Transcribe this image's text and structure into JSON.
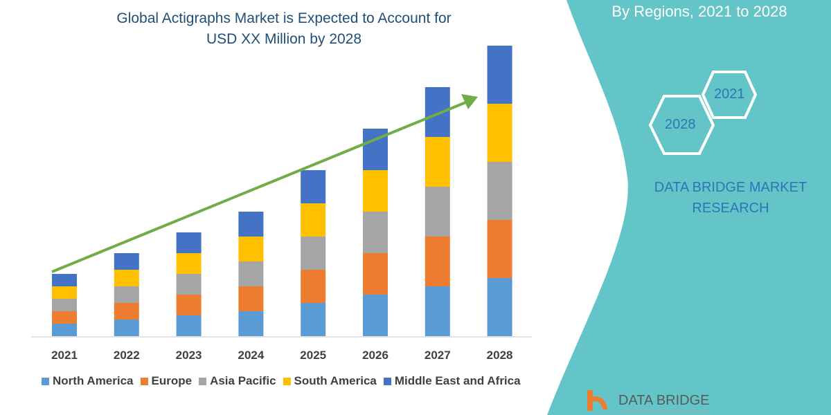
{
  "title": "Global Actigraphs Market is Expected to Account for USD XX Million by 2028",
  "title_lines": [
    "Global Actigraphs Market is Expected to Account for",
    "USD XX Million by 2028"
  ],
  "side_panel": {
    "subtitle": "By Regions,  2021 to 2028",
    "hex_labels": [
      "2021",
      "2028"
    ],
    "brand": [
      "DATA BRIDGE MARKET",
      "RESEARCH"
    ],
    "logo_text": "DATA BRIDGE",
    "panel_color": "#63c5c8"
  },
  "chart_data": {
    "type": "bar",
    "stacked": true,
    "title": "Global Actigraphs Market is Expected to Account for USD XX Million by 2028",
    "categories": [
      "2021",
      "2022",
      "2023",
      "2024",
      "2025",
      "2026",
      "2027",
      "2028"
    ],
    "series": [
      {
        "name": "North America",
        "color": "#5b9bd5",
        "values": [
          15,
          20,
          25,
          30,
          40,
          50,
          60,
          70
        ]
      },
      {
        "name": "Europe",
        "color": "#ed7d31",
        "values": [
          15,
          20,
          25,
          30,
          40,
          50,
          60,
          70
        ]
      },
      {
        "name": "Asia Pacific",
        "color": "#a5a5a5",
        "values": [
          15,
          20,
          25,
          30,
          40,
          50,
          60,
          70
        ]
      },
      {
        "name": "South America",
        "color": "#ffc000",
        "values": [
          15,
          20,
          25,
          30,
          40,
          50,
          60,
          70
        ]
      },
      {
        "name": "Middle East and Africa",
        "color": "#4472c4",
        "values": [
          15,
          20,
          25,
          30,
          40,
          50,
          60,
          70
        ]
      }
    ],
    "ylim": [
      0,
      360
    ],
    "y_axis_shown": false,
    "grid": false,
    "legend_position": "bottom",
    "trend_arrow_color": "#70ad47"
  }
}
